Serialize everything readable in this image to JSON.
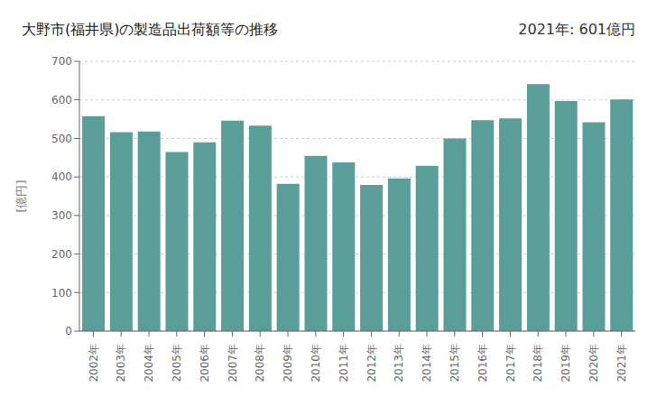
{
  "chart_data": {
    "type": "bar",
    "title": "大野市(福井県)の製造品出荷額等の推移",
    "ylabel": "[億円]",
    "annotation": "2021年: 601億円",
    "categories": [
      "2002年",
      "2003年",
      "2004年",
      "2005年",
      "2006年",
      "2007年",
      "2008年",
      "2009年",
      "2010年",
      "2011年",
      "2012年",
      "2013年",
      "2014年",
      "2015年",
      "2016年",
      "2017年",
      "2018年",
      "2019年",
      "2020年",
      "2021年"
    ],
    "values": [
      558,
      516,
      518,
      465,
      490,
      546,
      533,
      382,
      455,
      438,
      379,
      396,
      429,
      500,
      547,
      552,
      641,
      597,
      542,
      601
    ],
    "color": "#5a9e9a",
    "ylim": [
      0,
      700
    ],
    "yticks": [
      0,
      100,
      200,
      300,
      400,
      500,
      600,
      700
    ],
    "grid": true
  }
}
